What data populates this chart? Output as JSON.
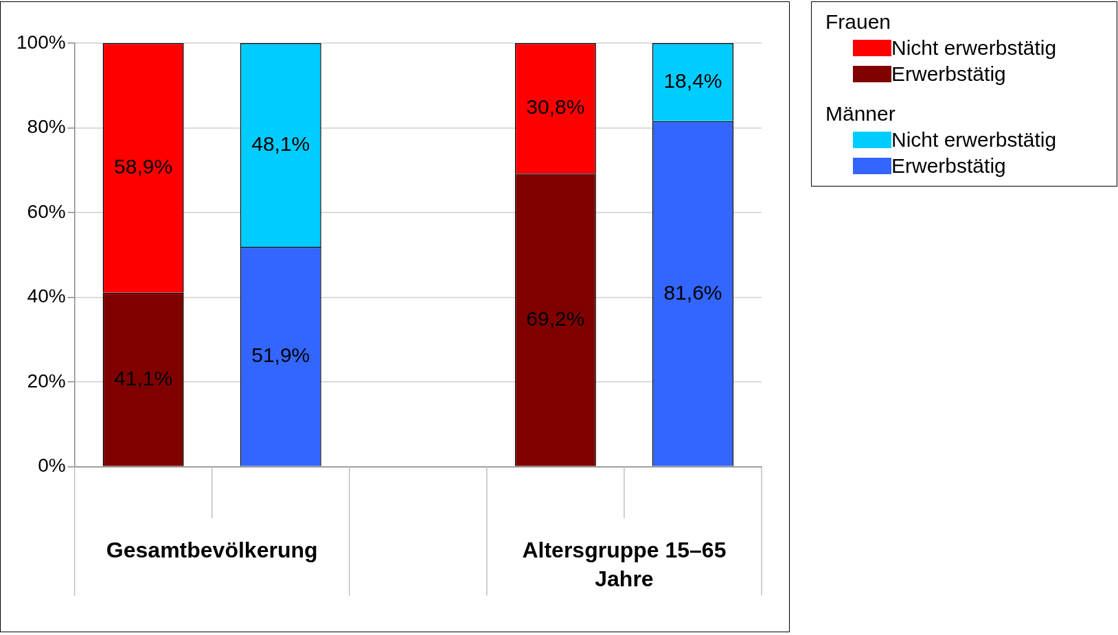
{
  "chart_data": {
    "type": "bar",
    "stacked": true,
    "categories": [
      null,
      null,
      null,
      null,
      null
    ],
    "ylim": [
      0,
      100
    ],
    "yticks": [
      {
        "value": 0,
        "label": "0%"
      },
      {
        "value": 20,
        "label": "20%"
      },
      {
        "value": 40,
        "label": "40%"
      },
      {
        "value": 60,
        "label": "60%"
      },
      {
        "value": 80,
        "label": "80%"
      },
      {
        "value": 100,
        "label": "100%"
      }
    ],
    "grid": "y",
    "legend": "right",
    "annotations": [
      "Frauen",
      "Männer",
      "Gesamtbevölkerung",
      "Altersgruppe 15–65 Jahre"
    ],
    "series": [
      {
        "name": "Erwerbstätig",
        "color": "#800000",
        "values": [
          41.1,
          null,
          null,
          69.2,
          null
        ],
        "value_labels": [
          "41,1%",
          null,
          null,
          "69,2%",
          null
        ]
      },
      {
        "name": "Nicht erwerbstätig",
        "color": "#ff0000",
        "values": [
          58.9,
          null,
          null,
          30.8,
          null
        ],
        "value_labels": [
          "58,9%",
          null,
          null,
          "30,8%",
          null
        ]
      },
      {
        "name": "Erwerbstätig",
        "color": "#3366ff",
        "values": [
          null,
          51.9,
          null,
          null,
          81.6
        ],
        "value_labels": [
          null,
          "51,9%",
          null,
          null,
          "81,6%"
        ]
      },
      {
        "name": "Nicht erwerbstätig",
        "color": "#00ccff",
        "values": [
          null,
          48.1,
          null,
          null,
          18.4
        ],
        "value_labels": [
          null,
          "48,1%",
          null,
          null,
          "18,4%"
        ]
      }
    ]
  }
}
